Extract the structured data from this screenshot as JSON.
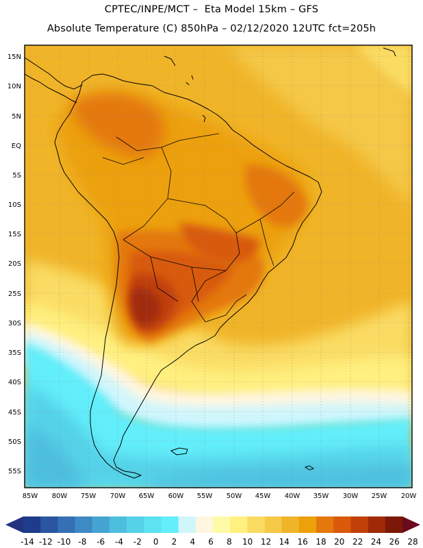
{
  "header": {
    "line1": "CPTEC/INPE/MCT –  Eta Model 15km – GFS",
    "line2": "Absolute Temperature (C) 850hPa – 02/12/2020 12UTC fct=205h"
  },
  "axes": {
    "lat_labels": [
      "15N",
      "10N",
      "5N",
      "EQ",
      "5S",
      "10S",
      "15S",
      "20S",
      "25S",
      "30S",
      "35S",
      "40S",
      "45S",
      "50S",
      "55S"
    ],
    "lon_labels": [
      "85W",
      "80W",
      "75W",
      "70W",
      "65W",
      "60W",
      "55W",
      "50W",
      "45W",
      "40W",
      "35W",
      "30W",
      "25W",
      "20W"
    ]
  },
  "colorbar": {
    "labels": [
      "-14",
      "-12",
      "-10",
      "-8",
      "-6",
      "-4",
      "-2",
      "0",
      "2",
      "4",
      "6",
      "8",
      "10",
      "12",
      "14",
      "16",
      "18",
      "20",
      "22",
      "24",
      "26",
      "28"
    ],
    "colors": [
      "#1e3c8c",
      "#2a55a0",
      "#3570b4",
      "#3e8ac4",
      "#46a4d2",
      "#4ebede",
      "#55d2e8",
      "#5ce2f0",
      "#62eefa",
      "#d0f6fc",
      "#fff6e0",
      "#fffaa8",
      "#fff080",
      "#fadc64",
      "#f5c846",
      "#f0b428",
      "#eca00a",
      "#e4780a",
      "#d85a0a",
      "#c04008",
      "#a02a08",
      "#7c1808"
    ],
    "low_color": "#243282",
    "high_color": "#6a0a1c"
  }
}
